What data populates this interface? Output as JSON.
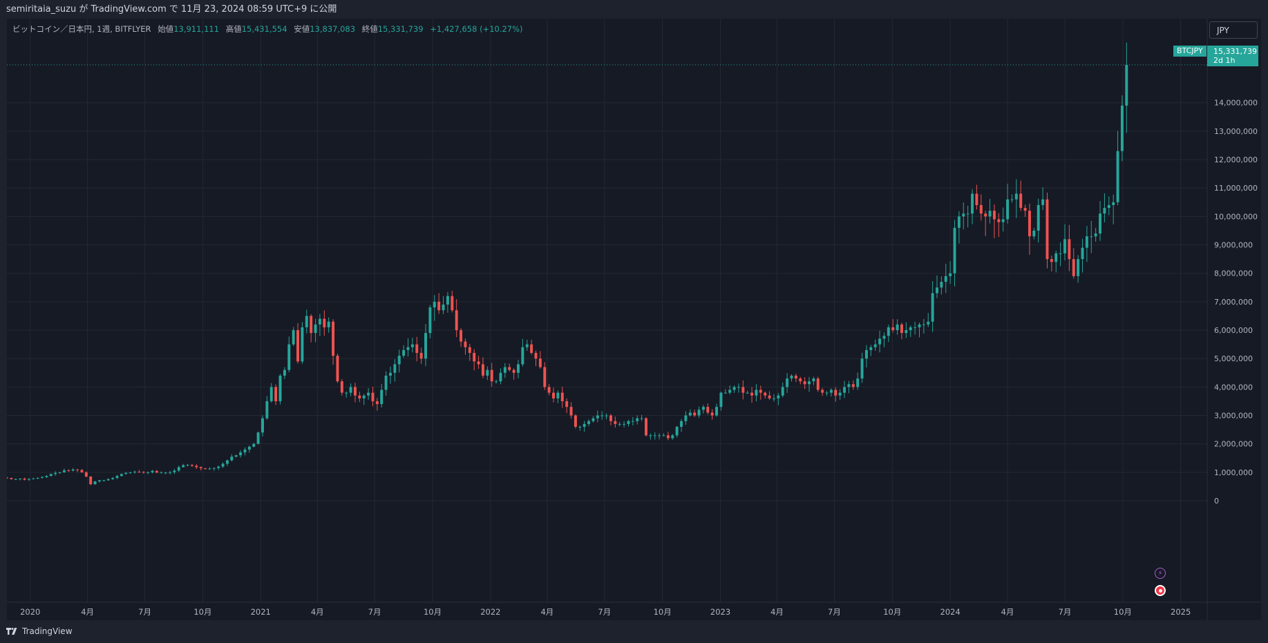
{
  "header": {
    "publish_text": "semiritaia_suzu が TradingView.com で 11月 23, 2024 08:59 UTC+9 に公開"
  },
  "legend": {
    "symbol_desc": "ビットコイン／日本円, 1週, BITFLYER",
    "open_label": "始値",
    "open_value": "13,911,111",
    "high_label": "高値",
    "high_value": "15,431,554",
    "low_label": "安値",
    "low_value": "13,837,083",
    "close_label": "終値",
    "close_value": "15,331,739",
    "change_value": "+1,427,658 (+10.27%)"
  },
  "currency_button": "JPY",
  "price_badge": {
    "symbol": "BTCJPY",
    "price": "15,331,739",
    "countdown": "2d 1h"
  },
  "footer": {
    "brand": "TradingView"
  },
  "colors": {
    "up": "#26a69a",
    "down": "#ef5350",
    "background": "#161a25",
    "grid": "#242833",
    "text": "#b2b5be"
  },
  "chart_data": {
    "type": "candlestick",
    "interval": "1週",
    "symbol": "BTCJPY",
    "ylim": [
      0,
      15500000
    ],
    "y_ticks": [
      0,
      1000000,
      2000000,
      3000000,
      4000000,
      5000000,
      6000000,
      7000000,
      8000000,
      9000000,
      10000000,
      11000000,
      12000000,
      13000000,
      14000000
    ],
    "y_tick_labels": [
      "0",
      "1,000,000",
      "2,000,000",
      "3,000,000",
      "4,000,000",
      "5,000,000",
      "6,000,000",
      "7,000,000",
      "8,000,000",
      "9,000,000",
      "10,000,000",
      "11,000,000",
      "12,000,000",
      "13,000,000",
      "14,000,000"
    ],
    "x_start": "2019-11-25",
    "x_end": "2025-01-20",
    "x_ticks": [
      {
        "date": "2020-01-01",
        "label": "2020"
      },
      {
        "date": "2020-04-01",
        "label": "4月"
      },
      {
        "date": "2020-07-01",
        "label": "7月"
      },
      {
        "date": "2020-10-01",
        "label": "10月"
      },
      {
        "date": "2021-01-01",
        "label": "2021"
      },
      {
        "date": "2021-04-01",
        "label": "4月"
      },
      {
        "date": "2021-07-01",
        "label": "7月"
      },
      {
        "date": "2021-10-01",
        "label": "10月"
      },
      {
        "date": "2022-01-01",
        "label": "2022"
      },
      {
        "date": "2022-04-01",
        "label": "4月"
      },
      {
        "date": "2022-07-01",
        "label": "7月"
      },
      {
        "date": "2022-10-01",
        "label": "10月"
      },
      {
        "date": "2023-01-01",
        "label": "2023"
      },
      {
        "date": "2023-04-01",
        "label": "4月"
      },
      {
        "date": "2023-07-01",
        "label": "7月"
      },
      {
        "date": "2023-10-01",
        "label": "10月"
      },
      {
        "date": "2024-01-01",
        "label": "2024"
      },
      {
        "date": "2024-04-01",
        "label": "4月"
      },
      {
        "date": "2024-07-01",
        "label": "7月"
      },
      {
        "date": "2024-10-01",
        "label": "10月"
      },
      {
        "date": "2025-01-01",
        "label": "2025"
      }
    ],
    "weekly_close": [
      [
        800000,
        760000,
        760000,
        780000,
        740000,
        770000,
        780000,
        800000,
        830000,
        870000,
        940000,
        980000,
        1000000,
        1070000,
        1060000,
        1100000,
        1080000,
        1000000,
        850000,
        580000,
        680000,
        720000,
        720000,
        760000,
        800000,
        870000,
        940000,
        980000,
        1000000,
        1020000,
        1010000,
        990000,
        1000000,
        1050000,
        990000,
        990000,
        990000,
        1000000,
        1060000,
        1180000,
        1250000,
        1260000,
        1230000,
        1180000,
        1140000,
        1130000,
        1130000,
        1150000,
        1200000,
        1300000,
        1420000,
        1550000,
        1600000,
        1700000,
        1800000,
        1900000,
        2000000
      ],
      [
        2400000,
        2900000,
        3500000,
        4000000,
        3500000,
        4400000,
        4600000,
        5500000,
        6000000,
        4900000,
        6100000,
        6500000,
        5900000,
        6200000,
        6400000,
        6100000,
        6300000,
        5100000,
        4200000,
        3800000,
        3800000,
        4000000,
        3700000,
        3600000,
        3700000,
        3800000,
        3500000,
        3400000,
        3900000,
        4400000,
        4500000,
        4800000,
        5100000,
        5300000,
        5400000,
        5500000,
        5200000,
        5000000,
        5900000,
        6800000,
        7000000,
        6700000,
        6900000,
        7200000,
        6700000,
        6000000,
        5600000,
        5400000,
        5200000,
        4900000,
        4800000,
        4400000
      ],
      [
        4600000,
        4200000,
        4200000,
        4500000,
        4700000,
        4600000,
        4500000,
        4800000,
        5400000,
        5500000,
        5200000,
        5000000,
        4700000,
        4000000,
        3800000,
        3600000,
        3800000,
        3500000,
        3300000,
        3000000,
        2600000,
        2600000,
        2700000,
        2800000,
        2900000,
        3000000,
        3000000,
        3000000,
        2800000,
        2700000,
        2700000,
        2700000,
        2800000,
        2800000,
        2900000,
        2900000,
        2300000,
        2300000,
        2300000,
        2300000,
        2300000,
        2200000,
        2300000,
        2600000,
        2800000,
        3000000,
        3100000,
        3000000,
        3200000,
        3300000,
        3100000,
        3000000,
        3300000
      ],
      [
        3800000,
        3800000,
        3900000,
        4000000,
        4000000,
        3800000,
        3800000,
        3700000,
        3900000,
        3800000,
        3700000,
        3600000,
        3600000,
        3700000,
        4000000,
        4300000,
        4400000,
        4300000,
        4200000,
        4100000,
        4200000,
        4300000,
        3900000,
        3800000,
        3800000,
        3900000,
        3700000,
        3800000,
        4000000,
        4100000,
        4000000,
        4300000,
        5000000,
        5300000,
        5400000,
        5500000,
        5700000,
        5800000,
        6100000,
        6000000,
        6200000,
        5900000,
        6000000,
        6100000,
        6100000,
        6200000,
        6200000,
        6300000,
        7300000,
        7500000,
        7700000,
        7900000,
        8000000
      ],
      [
        9600000,
        10000000,
        10100000,
        10100000,
        10800000,
        10400000,
        10100000,
        10000000,
        10200000,
        9900000,
        9800000,
        9900000,
        10600000,
        10600000,
        10800000,
        10300000,
        10200000,
        9300000,
        9500000,
        10400000,
        10600000,
        8500000,
        8400000,
        8700000,
        8700000,
        9200000,
        8500000,
        7900000,
        8500000,
        8900000,
        9300000,
        9300000,
        9400000,
        10100000,
        10300000,
        10400000,
        10500000,
        12300000,
        13900000,
        15331739
      ]
    ]
  }
}
